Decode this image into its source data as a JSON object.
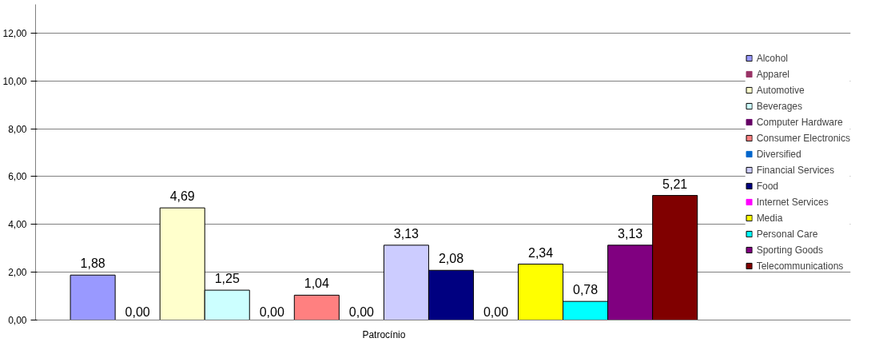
{
  "chart_data": {
    "type": "bar",
    "categories": [
      "Patrocínio"
    ],
    "series": [
      {
        "name": "Alcohol",
        "color": "#9999ff",
        "values": [
          1.88
        ],
        "value_labels": [
          "1,88"
        ]
      },
      {
        "name": "Apparel",
        "color": "#993366",
        "values": [
          0.0
        ],
        "value_labels": [
          "0,00"
        ]
      },
      {
        "name": "Automotive",
        "color": "#ffffcc",
        "values": [
          4.69
        ],
        "value_labels": [
          "4,69"
        ]
      },
      {
        "name": "Beverages",
        "color": "#ccffff",
        "values": [
          1.25
        ],
        "value_labels": [
          "1,25"
        ]
      },
      {
        "name": "Computer Hardware",
        "color": "#660066",
        "values": [
          0.0
        ],
        "value_labels": [
          "0,00"
        ]
      },
      {
        "name": "Consumer Electronics",
        "color": "#ff8080",
        "values": [
          1.04
        ],
        "value_labels": [
          "1,04"
        ]
      },
      {
        "name": "Diversified",
        "color": "#0066cc",
        "values": [
          0.0
        ],
        "value_labels": [
          "0,00"
        ]
      },
      {
        "name": "Financial Services",
        "color": "#ccccff",
        "values": [
          3.13
        ],
        "value_labels": [
          "3,13"
        ]
      },
      {
        "name": "Food",
        "color": "#000080",
        "values": [
          2.08
        ],
        "value_labels": [
          "2,08"
        ]
      },
      {
        "name": "Internet Services",
        "color": "#ff00ff",
        "values": [
          0.0
        ],
        "value_labels": [
          "0,00"
        ]
      },
      {
        "name": "Media",
        "color": "#ffff00",
        "values": [
          2.34
        ],
        "value_labels": [
          "2,34"
        ]
      },
      {
        "name": "Personal Care",
        "color": "#00ffff",
        "values": [
          0.78
        ],
        "value_labels": [
          "0,78"
        ]
      },
      {
        "name": "Sporting Goods",
        "color": "#800080",
        "values": [
          3.13
        ],
        "value_labels": [
          "3,13"
        ]
      },
      {
        "name": "Telecommunications",
        "color": "#800000",
        "values": [
          5.21
        ],
        "value_labels": [
          "5,21"
        ]
      }
    ],
    "ylim": [
      0,
      13.2
    ],
    "yticks": [
      {
        "value": 0,
        "label": "0,00"
      },
      {
        "value": 2,
        "label": "2,00"
      },
      {
        "value": 4,
        "label": "4,00"
      },
      {
        "value": 6,
        "label": "6,00"
      },
      {
        "value": 8,
        "label": "8,00"
      },
      {
        "value": 10,
        "label": "10,00"
      },
      {
        "value": 12,
        "label": "12,00"
      }
    ],
    "grid": "y",
    "legend": "right"
  }
}
